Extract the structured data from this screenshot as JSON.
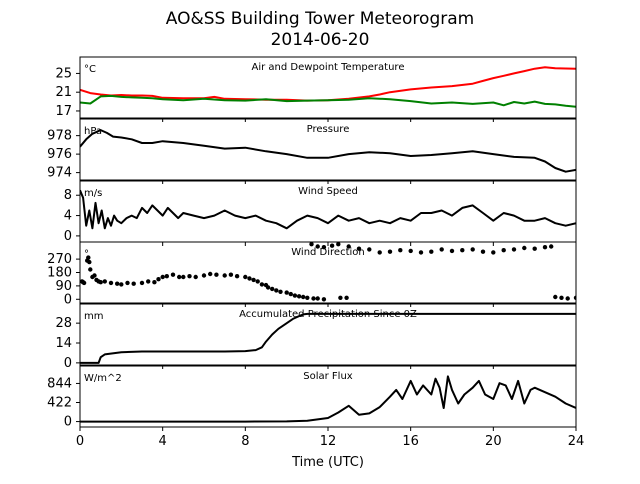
{
  "title_line1": "AO&SS Building Tower Meteorogram",
  "title_line2": "2014-06-20",
  "xlabel": "Time (UTC)",
  "colors": {
    "temperature": "#ff0000",
    "dewpoint": "#008000",
    "line": "#000000"
  },
  "chart_data": {
    "type": "line",
    "x_ticks": [
      0,
      4,
      8,
      12,
      16,
      20,
      24
    ],
    "xlim": [
      0,
      24
    ],
    "xlabel": "Time (UTC)",
    "panels": [
      {
        "title": "Air and Dewpoint Temperature",
        "unit": "°C",
        "ylim": [
          15.5,
          28.5
        ],
        "yticks": [
          17,
          21,
          25
        ],
        "series": [
          {
            "color_key": "temperature",
            "style": "line",
            "x": [
              0,
              0.5,
              1,
              1.5,
              2,
              2.5,
              3,
              3.5,
              4,
              5,
              6,
              6.5,
              7,
              8,
              9,
              10,
              11,
              12,
              13,
              14,
              14.5,
              15,
              16,
              17,
              18,
              19,
              19.5,
              20,
              20.5,
              21,
              21.5,
              22,
              22.5,
              23,
              24
            ],
            "y": [
              21.5,
              20.8,
              20.5,
              20.3,
              20.4,
              20.3,
              20.3,
              20.2,
              19.8,
              19.7,
              19.7,
              20,
              19.6,
              19.5,
              19.4,
              19.4,
              19.2,
              19.3,
              19.6,
              20.1,
              20.5,
              21,
              21.6,
              22,
              22.3,
              22.8,
              23.4,
              24,
              24.5,
              25,
              25.5,
              26,
              26.3,
              26.1,
              26
            ]
          },
          {
            "color_key": "dewpoint",
            "style": "line",
            "x": [
              0,
              0.5,
              1,
              1.5,
              2,
              2.5,
              3,
              3.5,
              4,
              5,
              6,
              7,
              8,
              9,
              10,
              11,
              12,
              13,
              14,
              15,
              16,
              17,
              18,
              19,
              20,
              20.5,
              21,
              21.5,
              22,
              22.5,
              23,
              23.5,
              24
            ],
            "y": [
              18.8,
              18.6,
              20.1,
              20.2,
              20,
              19.9,
              19.8,
              19.7,
              19.5,
              19.3,
              19.6,
              19.3,
              19.2,
              19.5,
              19.1,
              19.2,
              19.3,
              19.4,
              19.7,
              19.5,
              19.1,
              18.6,
              18.8,
              18.5,
              18.8,
              18.2,
              18.9,
              18.6,
              19,
              18.5,
              18.4,
              18.1,
              17.9
            ]
          }
        ]
      },
      {
        "title": "Pressure",
        "unit": "hPa",
        "ylim": [
          973.2,
          979.8
        ],
        "yticks": [
          974,
          976,
          978
        ],
        "series": [
          {
            "color_key": "line",
            "style": "line",
            "x": [
              0,
              0.3,
              0.6,
              1,
              1.3,
              1.6,
              2,
              2.5,
              3,
              3.5,
              4,
              5,
              6,
              7,
              8,
              9,
              10,
              11,
              12,
              13,
              14,
              15,
              16,
              17,
              18,
              19,
              20,
              21,
              22,
              22.5,
              23,
              23.5,
              24
            ],
            "y": [
              976.8,
              977.6,
              978.2,
              978.6,
              978.3,
              977.9,
              977.8,
              977.6,
              977.2,
              977.2,
              977.4,
              977.2,
              976.9,
              976.6,
              976.7,
              976.3,
              976,
              975.6,
              975.6,
              976,
              976.2,
              976.1,
              975.8,
              975.9,
              976.1,
              976.3,
              976,
              975.7,
              975.6,
              975.2,
              974.5,
              974.1,
              974.3
            ]
          }
        ]
      },
      {
        "title": "Wind Speed",
        "unit": "m/s",
        "ylim": [
          -1.2,
          10.8
        ],
        "yticks": [
          0,
          4,
          8
        ],
        "series": [
          {
            "color_key": "line",
            "style": "line",
            "x": [
              0,
              0.15,
              0.3,
              0.45,
              0.6,
              0.75,
              0.9,
              1.05,
              1.2,
              1.35,
              1.5,
              1.65,
              1.8,
              2,
              2.25,
              2.5,
              2.75,
              3,
              3.25,
              3.5,
              3.75,
              4,
              4.25,
              4.5,
              4.75,
              5,
              5.5,
              6,
              6.5,
              7,
              7.5,
              8,
              8.5,
              9,
              9.5,
              10,
              10.5,
              11,
              11.5,
              12,
              12.5,
              13,
              13.5,
              14,
              14.5,
              15,
              15.5,
              16,
              16.5,
              17,
              17.5,
              18,
              18.5,
              19,
              19.5,
              20,
              20.5,
              21,
              21.5,
              22,
              22.5,
              23,
              23.5,
              24
            ],
            "y": [
              9,
              7.5,
              2,
              5,
              1.5,
              6.5,
              2.5,
              5,
              1.5,
              3.5,
              2,
              4,
              3,
              2.5,
              3.5,
              4,
              3.5,
              5.5,
              4.5,
              6,
              5,
              4,
              5.5,
              4.5,
              3.5,
              4.5,
              4,
              3.5,
              4,
              5,
              4,
              3.5,
              4,
              3,
              2.5,
              1.5,
              3,
              4,
              3.5,
              2.5,
              4,
              3,
              3.5,
              2.5,
              3,
              2.5,
              3.5,
              3,
              4.5,
              4.5,
              5,
              4,
              5.5,
              6,
              4.5,
              3,
              4.5,
              4,
              3,
              3,
              3.5,
              2.5,
              2,
              2.5
            ]
          }
        ]
      },
      {
        "title": "Wind Direction",
        "unit": "°",
        "ylim": [
          -25,
          385
        ],
        "yticks": [
          0,
          90,
          180,
          270
        ],
        "series": [
          {
            "color_key": "line",
            "style": "points",
            "x": [
              0.1,
              0.15,
              0.2,
              0.35,
              0.4,
              0.45,
              0.5,
              0.6,
              0.7,
              0.8,
              0.9,
              1,
              1.2,
              1.5,
              1.8,
              2,
              2.3,
              2.6,
              3,
              3.3,
              3.6,
              3.8,
              4,
              4.2,
              4.5,
              4.8,
              5,
              5.3,
              5.6,
              6,
              6.3,
              6.6,
              7,
              7.3,
              7.6,
              8,
              8.2,
              8.4,
              8.6,
              8.8,
              9,
              9.1,
              9.3,
              9.5,
              9.7,
              10,
              10.2,
              10.4,
              10.6,
              10.8,
              11,
              11.3,
              11.5,
              11.8,
              12.6,
              12.9,
              11.2,
              11.5,
              11.8,
              12.2,
              12.5,
              13,
              13.5,
              14,
              14.5,
              15,
              15.5,
              16,
              16.5,
              17,
              17.5,
              18,
              18.5,
              19,
              19.5,
              20,
              20.5,
              21,
              21.5,
              22,
              22.5,
              22.8,
              23,
              23.3,
              23.6,
              24
            ],
            "y": [
              120,
              115,
              110,
              260,
              280,
              250,
              200,
              150,
              160,
              130,
              120,
              115,
              120,
              110,
              105,
              100,
              110,
              105,
              110,
              120,
              115,
              135,
              150,
              155,
              165,
              150,
              150,
              155,
              150,
              160,
              170,
              165,
              160,
              165,
              155,
              150,
              140,
              130,
              120,
              100,
              95,
              80,
              70,
              60,
              50,
              45,
              35,
              25,
              20,
              15,
              10,
              5,
              5,
              0,
              10,
              10,
              370,
              355,
              350,
              360,
              370,
              355,
              340,
              335,
              315,
              320,
              330,
              325,
              315,
              320,
              335,
              325,
              330,
              335,
              320,
              315,
              330,
              335,
              345,
              340,
              350,
              355,
              15,
              10,
              5,
              10
            ]
          }
        ]
      },
      {
        "title": "Accumulated Precipitation Since 0Z",
        "unit": "mm",
        "ylim": [
          -1.5,
          41.5
        ],
        "yticks": [
          0,
          14,
          28
        ],
        "series": [
          {
            "color_key": "line",
            "style": "line",
            "x": [
              0,
              0.9,
              1,
              1.2,
              2,
              3,
              4,
              5,
              6,
              7,
              8,
              8.5,
              8.8,
              9,
              9.3,
              9.6,
              10,
              10.3,
              10.6,
              10.8,
              11,
              12,
              24
            ],
            "y": [
              0,
              0,
              4,
              6,
              7.5,
              8,
              8,
              8,
              8,
              8,
              8.3,
              9,
              11,
              15,
              20,
              24,
              28,
              31,
              33,
              34.2,
              34.5,
              34.5,
              34.5
            ]
          }
        ]
      },
      {
        "title": "Solar Flux",
        "unit": "W/m^2",
        "ylim": [
          -120,
          1230
        ],
        "yticks": [
          0,
          422,
          844
        ],
        "series": [
          {
            "color_key": "line",
            "style": "line",
            "x": [
              0,
              4,
              8,
              10,
              11,
              12,
              12.5,
              13,
              13.5,
              14,
              14.5,
              15,
              15.3,
              15.6,
              16,
              16.3,
              16.6,
              17,
              17.2,
              17.4,
              17.6,
              17.8,
              18,
              18.3,
              18.6,
              19,
              19.3,
              19.6,
              20,
              20.3,
              20.6,
              20.9,
              21.2,
              21.5,
              21.8,
              22,
              22.5,
              23,
              23.5,
              24
            ],
            "y": [
              0,
              0,
              0,
              5,
              20,
              80,
              200,
              350,
              150,
              180,
              320,
              550,
              700,
              500,
              900,
              600,
              800,
              600,
              950,
              750,
              300,
              1000,
              700,
              400,
              600,
              750,
              900,
              600,
              500,
              850,
              800,
              500,
              900,
              400,
              700,
              750,
              650,
              550,
              400,
              300
            ]
          }
        ]
      }
    ]
  }
}
